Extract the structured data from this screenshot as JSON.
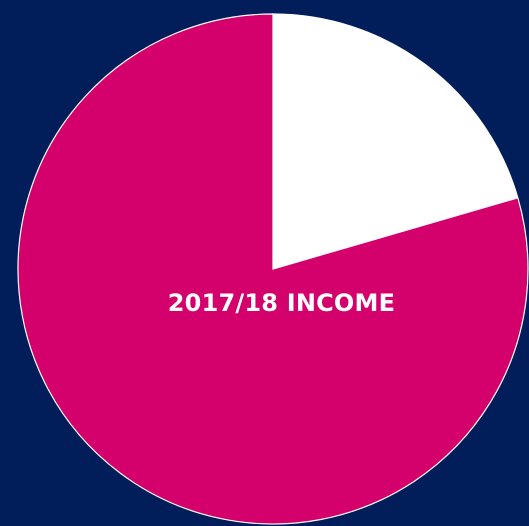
{
  "colors": {
    "background": "#011e5a",
    "slice_main": "#d4006b",
    "slice_minor": "#ffffff",
    "outline": "#ffffff"
  },
  "chart_data": {
    "type": "pie",
    "title": "2017/18 INCOME",
    "slices": [
      {
        "share": 0.205,
        "color": "#ffffff"
      },
      {
        "share": 0.795,
        "color": "#d4006b"
      }
    ],
    "start_angle_deg": 0,
    "direction": "clockwise",
    "legend": "none"
  }
}
